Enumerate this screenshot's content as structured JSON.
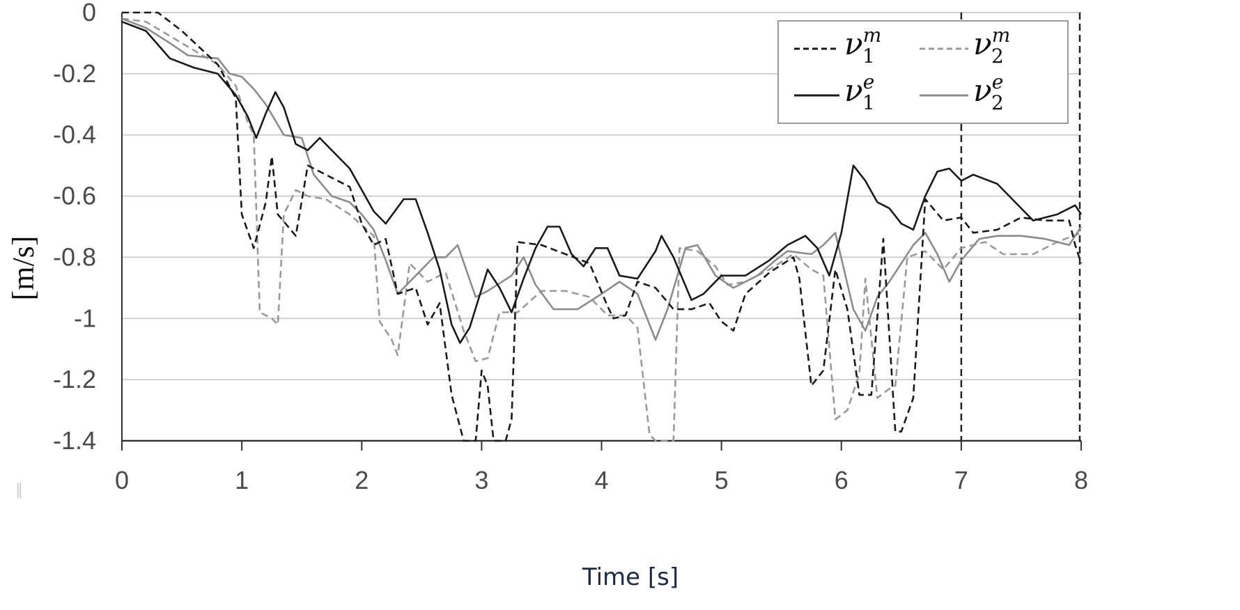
{
  "chart_data": {
    "type": "line",
    "title": "",
    "xlabel": "Time [s]",
    "ylabel": "[m/s]",
    "xlim": [
      0,
      8
    ],
    "ylim": [
      -1.4,
      0
    ],
    "x_ticks": [
      "0",
      "1",
      "2",
      "3",
      "4",
      "5",
      "6",
      "7",
      "8"
    ],
    "y_ticks": [
      "0",
      "-0.2",
      "-0.4",
      "-0.6",
      "-0.8",
      "-1",
      "-1.2",
      "-1.4"
    ],
    "grid": "horizontal",
    "legend_position": "top-right",
    "vertical_markers": [
      7,
      8
    ],
    "series": [
      {
        "name": "v1m",
        "base": "ν",
        "sub": "1",
        "sup": "m",
        "color": "#1a1a1a",
        "dash": "10,6",
        "points": [
          [
            0,
            0
          ],
          [
            0.3,
            0
          ],
          [
            0.5,
            -0.06
          ],
          [
            0.8,
            -0.17
          ],
          [
            0.95,
            -0.28
          ],
          [
            1.0,
            -0.66
          ],
          [
            1.1,
            -0.77
          ],
          [
            1.2,
            -0.62
          ],
          [
            1.25,
            -0.47
          ],
          [
            1.3,
            -0.66
          ],
          [
            1.45,
            -0.73
          ],
          [
            1.55,
            -0.5
          ],
          [
            1.7,
            -0.53
          ],
          [
            1.9,
            -0.57
          ],
          [
            2.0,
            -0.69
          ],
          [
            2.1,
            -0.76
          ],
          [
            2.2,
            -0.74
          ],
          [
            2.3,
            -0.92
          ],
          [
            2.45,
            -0.9
          ],
          [
            2.55,
            -1.02
          ],
          [
            2.65,
            -0.95
          ],
          [
            2.75,
            -1.25
          ],
          [
            2.85,
            -1.4
          ],
          [
            2.95,
            -1.4
          ],
          [
            3.0,
            -1.17
          ],
          [
            3.05,
            -1.22
          ],
          [
            3.1,
            -1.4
          ],
          [
            3.2,
            -1.4
          ],
          [
            3.25,
            -1.33
          ],
          [
            3.3,
            -0.75
          ],
          [
            3.5,
            -0.76
          ],
          [
            3.7,
            -0.79
          ],
          [
            3.9,
            -0.82
          ],
          [
            4.05,
            -0.96
          ],
          [
            4.1,
            -1.0
          ],
          [
            4.2,
            -0.99
          ],
          [
            4.3,
            -0.88
          ],
          [
            4.45,
            -0.9
          ],
          [
            4.6,
            -0.97
          ],
          [
            4.75,
            -0.97
          ],
          [
            4.9,
            -0.95
          ],
          [
            5.0,
            -1.01
          ],
          [
            5.1,
            -1.04
          ],
          [
            5.2,
            -0.92
          ],
          [
            5.4,
            -0.85
          ],
          [
            5.6,
            -0.8
          ],
          [
            5.65,
            -0.87
          ],
          [
            5.75,
            -1.22
          ],
          [
            5.85,
            -1.17
          ],
          [
            5.95,
            -0.84
          ],
          [
            6.05,
            -0.97
          ],
          [
            6.15,
            -1.25
          ],
          [
            6.25,
            -1.25
          ],
          [
            6.35,
            -0.74
          ],
          [
            6.45,
            -1.37
          ],
          [
            6.5,
            -1.37
          ],
          [
            6.6,
            -1.26
          ],
          [
            6.7,
            -0.61
          ],
          [
            6.85,
            -0.68
          ],
          [
            7.0,
            -0.67
          ],
          [
            7.1,
            -0.72
          ],
          [
            7.3,
            -0.71
          ],
          [
            7.5,
            -0.67
          ],
          [
            7.7,
            -0.68
          ],
          [
            7.9,
            -0.68
          ],
          [
            7.95,
            -0.76
          ],
          [
            8.0,
            -0.82
          ]
        ]
      },
      {
        "name": "v2m",
        "base": "ν",
        "sub": "2",
        "sup": "m",
        "color": "#9a9a9a",
        "dash": "10,6",
        "points": [
          [
            0,
            -0.02
          ],
          [
            0.2,
            -0.03
          ],
          [
            0.5,
            -0.1
          ],
          [
            0.8,
            -0.17
          ],
          [
            0.95,
            -0.24
          ],
          [
            1.05,
            -0.36
          ],
          [
            1.1,
            -0.4
          ],
          [
            1.15,
            -0.98
          ],
          [
            1.25,
            -1.0
          ],
          [
            1.3,
            -1.02
          ],
          [
            1.35,
            -0.66
          ],
          [
            1.45,
            -0.58
          ],
          [
            1.55,
            -0.6
          ],
          [
            1.7,
            -0.61
          ],
          [
            1.9,
            -0.66
          ],
          [
            2.1,
            -0.73
          ],
          [
            2.15,
            -1.01
          ],
          [
            2.25,
            -1.07
          ],
          [
            2.3,
            -1.12
          ],
          [
            2.4,
            -0.82
          ],
          [
            2.55,
            -0.88
          ],
          [
            2.7,
            -0.85
          ],
          [
            2.85,
            -1.04
          ],
          [
            2.95,
            -1.14
          ],
          [
            3.05,
            -1.13
          ],
          [
            3.15,
            -0.98
          ],
          [
            3.3,
            -0.98
          ],
          [
            3.5,
            -0.91
          ],
          [
            3.7,
            -0.91
          ],
          [
            3.9,
            -0.93
          ],
          [
            4.05,
            -0.99
          ],
          [
            4.2,
            -0.99
          ],
          [
            4.3,
            -1.03
          ],
          [
            4.4,
            -1.38
          ],
          [
            4.45,
            -1.4
          ],
          [
            4.55,
            -1.4
          ],
          [
            4.6,
            -1.4
          ],
          [
            4.65,
            -0.77
          ],
          [
            4.8,
            -0.78
          ],
          [
            4.95,
            -0.83
          ],
          [
            5.05,
            -0.89
          ],
          [
            5.2,
            -0.88
          ],
          [
            5.4,
            -0.84
          ],
          [
            5.6,
            -0.79
          ],
          [
            5.75,
            -0.84
          ],
          [
            5.85,
            -0.86
          ],
          [
            5.95,
            -1.33
          ],
          [
            6.05,
            -1.3
          ],
          [
            6.15,
            -1.18
          ],
          [
            6.2,
            -0.87
          ],
          [
            6.3,
            -1.26
          ],
          [
            6.4,
            -1.23
          ],
          [
            6.45,
            -1.22
          ],
          [
            6.55,
            -0.8
          ],
          [
            6.7,
            -0.78
          ],
          [
            6.85,
            -0.84
          ],
          [
            7.0,
            -0.77
          ],
          [
            7.2,
            -0.75
          ],
          [
            7.35,
            -0.79
          ],
          [
            7.6,
            -0.79
          ],
          [
            7.8,
            -0.75
          ],
          [
            8.0,
            -0.72
          ]
        ]
      },
      {
        "name": "v1e",
        "base": "ν",
        "sub": "1",
        "sup": "e",
        "color": "#1a1a1a",
        "dash": "",
        "points": [
          [
            0,
            -0.03
          ],
          [
            0.2,
            -0.06
          ],
          [
            0.4,
            -0.15
          ],
          [
            0.6,
            -0.18
          ],
          [
            0.8,
            -0.2
          ],
          [
            0.95,
            -0.27
          ],
          [
            1.05,
            -0.34
          ],
          [
            1.12,
            -0.41
          ],
          [
            1.2,
            -0.33
          ],
          [
            1.28,
            -0.26
          ],
          [
            1.35,
            -0.31
          ],
          [
            1.45,
            -0.43
          ],
          [
            1.55,
            -0.45
          ],
          [
            1.65,
            -0.41
          ],
          [
            1.8,
            -0.47
          ],
          [
            1.9,
            -0.51
          ],
          [
            2.0,
            -0.58
          ],
          [
            2.1,
            -0.65
          ],
          [
            2.2,
            -0.69
          ],
          [
            2.35,
            -0.61
          ],
          [
            2.45,
            -0.61
          ],
          [
            2.55,
            -0.72
          ],
          [
            2.65,
            -0.84
          ],
          [
            2.75,
            -1.02
          ],
          [
            2.82,
            -1.08
          ],
          [
            2.9,
            -1.03
          ],
          [
            3.05,
            -0.84
          ],
          [
            3.15,
            -0.9
          ],
          [
            3.25,
            -0.98
          ],
          [
            3.35,
            -0.87
          ],
          [
            3.45,
            -0.77
          ],
          [
            3.55,
            -0.7
          ],
          [
            3.65,
            -0.7
          ],
          [
            3.75,
            -0.79
          ],
          [
            3.85,
            -0.83
          ],
          [
            3.95,
            -0.77
          ],
          [
            4.05,
            -0.77
          ],
          [
            4.15,
            -0.86
          ],
          [
            4.3,
            -0.87
          ],
          [
            4.45,
            -0.78
          ],
          [
            4.5,
            -0.73
          ],
          [
            4.6,
            -0.8
          ],
          [
            4.75,
            -0.94
          ],
          [
            4.85,
            -0.92
          ],
          [
            5.0,
            -0.86
          ],
          [
            5.2,
            -0.86
          ],
          [
            5.4,
            -0.81
          ],
          [
            5.55,
            -0.76
          ],
          [
            5.7,
            -0.73
          ],
          [
            5.8,
            -0.77
          ],
          [
            5.9,
            -0.86
          ],
          [
            6.0,
            -0.72
          ],
          [
            6.1,
            -0.5
          ],
          [
            6.2,
            -0.55
          ],
          [
            6.3,
            -0.62
          ],
          [
            6.4,
            -0.64
          ],
          [
            6.5,
            -0.69
          ],
          [
            6.6,
            -0.71
          ],
          [
            6.7,
            -0.6
          ],
          [
            6.8,
            -0.52
          ],
          [
            6.9,
            -0.51
          ],
          [
            7.0,
            -0.55
          ],
          [
            7.1,
            -0.53
          ],
          [
            7.3,
            -0.56
          ],
          [
            7.5,
            -0.64
          ],
          [
            7.6,
            -0.68
          ],
          [
            7.8,
            -0.66
          ],
          [
            7.95,
            -0.63
          ],
          [
            8.0,
            -0.66
          ]
        ]
      },
      {
        "name": "v2e",
        "base": "ν",
        "sub": "2",
        "sup": "e",
        "color": "#8c8c8c",
        "dash": "",
        "points": [
          [
            0,
            -0.02
          ],
          [
            0.2,
            -0.05
          ],
          [
            0.4,
            -0.1
          ],
          [
            0.55,
            -0.14
          ],
          [
            0.8,
            -0.15
          ],
          [
            0.9,
            -0.2
          ],
          [
            1.0,
            -0.21
          ],
          [
            1.1,
            -0.25
          ],
          [
            1.2,
            -0.3
          ],
          [
            1.35,
            -0.4
          ],
          [
            1.5,
            -0.41
          ],
          [
            1.6,
            -0.53
          ],
          [
            1.75,
            -0.6
          ],
          [
            1.9,
            -0.62
          ],
          [
            2.0,
            -0.66
          ],
          [
            2.1,
            -0.71
          ],
          [
            2.2,
            -0.81
          ],
          [
            2.3,
            -0.92
          ],
          [
            2.45,
            -0.86
          ],
          [
            2.6,
            -0.8
          ],
          [
            2.7,
            -0.8
          ],
          [
            2.8,
            -0.76
          ],
          [
            2.95,
            -0.93
          ],
          [
            3.05,
            -0.91
          ],
          [
            3.25,
            -0.86
          ],
          [
            3.35,
            -0.8
          ],
          [
            3.45,
            -0.89
          ],
          [
            3.6,
            -0.97
          ],
          [
            3.8,
            -0.97
          ],
          [
            4.0,
            -0.92
          ],
          [
            4.15,
            -0.88
          ],
          [
            4.3,
            -0.92
          ],
          [
            4.45,
            -1.07
          ],
          [
            4.55,
            -0.97
          ],
          [
            4.7,
            -0.77
          ],
          [
            4.8,
            -0.76
          ],
          [
            4.95,
            -0.86
          ],
          [
            5.1,
            -0.9
          ],
          [
            5.3,
            -0.86
          ],
          [
            5.45,
            -0.81
          ],
          [
            5.55,
            -0.78
          ],
          [
            5.75,
            -0.79
          ],
          [
            5.85,
            -0.76
          ],
          [
            5.95,
            -0.72
          ],
          [
            6.1,
            -0.97
          ],
          [
            6.2,
            -1.04
          ],
          [
            6.3,
            -0.93
          ],
          [
            6.4,
            -0.88
          ],
          [
            6.6,
            -0.76
          ],
          [
            6.7,
            -0.72
          ],
          [
            6.8,
            -0.79
          ],
          [
            6.9,
            -0.88
          ],
          [
            7.0,
            -0.81
          ],
          [
            7.15,
            -0.74
          ],
          [
            7.3,
            -0.73
          ],
          [
            7.5,
            -0.73
          ],
          [
            7.7,
            -0.74
          ],
          [
            7.9,
            -0.76
          ],
          [
            8.0,
            -0.7
          ]
        ]
      }
    ]
  }
}
